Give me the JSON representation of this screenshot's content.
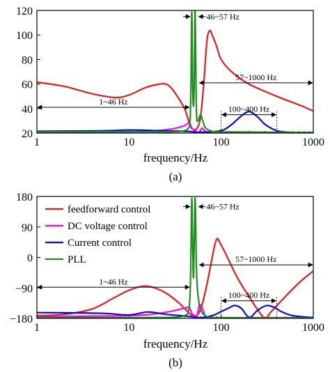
{
  "figure": {
    "panel_a_caption": "(a)",
    "panel_b_caption": "(b)"
  },
  "chart_data": [
    {
      "type": "line",
      "panel": "a",
      "title": "",
      "xlabel": "frequency/Hz",
      "ylabel": "",
      "x_scale": "log",
      "xlim": [
        1,
        1000
      ],
      "ylim": [
        20,
        120
      ],
      "x_ticks": [
        1,
        10,
        100,
        1000
      ],
      "x_tick_labels": [
        "1",
        "10",
        "100",
        "1000"
      ],
      "y_ticks": [
        20,
        40,
        60,
        80,
        100,
        120
      ],
      "y_tick_labels": [
        "20",
        "40",
        "60",
        "80",
        "100",
        "120"
      ],
      "grid": false,
      "annotations": [
        {
          "text": "1~46 Hz",
          "x_range": [
            1,
            46
          ],
          "y": 41
        },
        {
          "text": "46~57 Hz",
          "x_range": [
            46,
            57
          ],
          "y": 115
        },
        {
          "text": "57~1000 Hz",
          "x_range": [
            57,
            1000
          ],
          "y": 61
        },
        {
          "text": "100~400 Hz",
          "x_range": [
            100,
            400
          ],
          "y": 35
        }
      ],
      "series": [
        {
          "color": "#e41a1c",
          "points": [
            [
              1,
              61.5
            ],
            [
              2,
              58
            ],
            [
              4,
              52
            ],
            [
              7,
              49
            ],
            [
              10,
              51
            ],
            [
              15,
              57
            ],
            [
              20,
              59.5
            ],
            [
              25,
              60
            ],
            [
              30,
              55
            ],
            [
              40,
              40
            ],
            [
              46,
              26
            ],
            [
              50,
              23
            ],
            [
              55,
              24
            ],
            [
              60,
              34
            ],
            [
              65,
              62
            ],
            [
              70,
              95
            ],
            [
              75,
              103.5
            ],
            [
              80,
              100
            ],
            [
              90,
              90
            ],
            [
              100,
              80
            ],
            [
              130,
              70
            ],
            [
              200,
              60
            ],
            [
              400,
              50
            ],
            [
              700,
              43
            ],
            [
              1000,
              38
            ]
          ]
        },
        {
          "color": "#ff00ff",
          "points": [
            [
              1,
              20.5
            ],
            [
              10,
              21
            ],
            [
              20,
              22
            ],
            [
              30,
              23.5
            ],
            [
              40,
              26
            ],
            [
              45,
              28.5
            ],
            [
              48,
              24
            ],
            [
              52,
              22
            ],
            [
              55,
              20.5
            ],
            [
              58,
              21
            ],
            [
              62,
              24
            ],
            [
              66,
              22
            ],
            [
              70,
              21
            ],
            [
              100,
              20.5
            ],
            [
              1000,
              20.2
            ]
          ]
        },
        {
          "color": "#0a0ad2",
          "points": [
            [
              1,
              21.5
            ],
            [
              5,
              21.8
            ],
            [
              10,
              22.5
            ],
            [
              20,
              22
            ],
            [
              40,
              21.5
            ],
            [
              50,
              21
            ],
            [
              60,
              20.6
            ],
            [
              100,
              22
            ],
            [
              130,
              27
            ],
            [
              160,
              33
            ],
            [
              200,
              37.5
            ],
            [
              250,
              33
            ],
            [
              300,
              27
            ],
            [
              400,
              22
            ],
            [
              600,
              20.5
            ],
            [
              1000,
              20.2
            ]
          ]
        },
        {
          "color": "#1d8f1d",
          "points": [
            [
              1,
              21
            ],
            [
              10,
              21
            ],
            [
              30,
              21
            ],
            [
              40,
              22
            ],
            [
              44,
              24
            ],
            [
              46,
              30
            ],
            [
              47,
              60
            ],
            [
              48,
              119
            ],
            [
              49,
              60
            ],
            [
              50,
              42
            ],
            [
              51,
              60
            ],
            [
              52,
              119
            ],
            [
              53,
              80
            ],
            [
              54,
              35
            ],
            [
              56,
              30
            ],
            [
              58,
              33
            ],
            [
              60,
              35
            ],
            [
              63,
              30
            ],
            [
              68,
              24
            ],
            [
              80,
              21.5
            ],
            [
              100,
              21
            ],
            [
              1000,
              20.5
            ]
          ]
        }
      ]
    },
    {
      "type": "line",
      "panel": "b",
      "title": "",
      "xlabel": "frequency/Hz",
      "ylabel": "",
      "x_scale": "log",
      "xlim": [
        1,
        1000
      ],
      "ylim": [
        -180,
        180
      ],
      "x_ticks": [
        1,
        10,
        100,
        1000
      ],
      "x_tick_labels": [
        "1",
        "10",
        "100",
        "1000"
      ],
      "y_ticks": [
        -180,
        -90,
        0,
        90,
        180
      ],
      "y_tick_labels": [
        "−180",
        "−90",
        "0",
        "90",
        "180"
      ],
      "grid": false,
      "legend_position": "top-left",
      "annotations": [
        {
          "text": "1~46 Hz",
          "x_range": [
            1,
            46
          ],
          "y": -88
        },
        {
          "text": "46~57 Hz",
          "x_range": [
            46,
            57
          ],
          "y": 150
        },
        {
          "text": "57~1000 Hz",
          "x_range": [
            57,
            1000
          ],
          "y": -22
        },
        {
          "text": "100~400 Hz",
          "x_range": [
            100,
            400
          ],
          "y": -128
        }
      ],
      "series": [
        {
          "name": "feedforward control",
          "color": "#e41a1c",
          "points": [
            [
              1,
              -172
            ],
            [
              2,
              -168
            ],
            [
              4,
              -152
            ],
            [
              7,
              -118
            ],
            [
              10,
              -97
            ],
            [
              14,
              -85
            ],
            [
              18,
              -88
            ],
            [
              25,
              -105
            ],
            [
              35,
              -135
            ],
            [
              45,
              -165
            ],
            [
              50,
              -175
            ],
            [
              55,
              -172
            ],
            [
              62,
              -140
            ],
            [
              70,
              -80
            ],
            [
              78,
              -15
            ],
            [
              85,
              35
            ],
            [
              90,
              55
            ],
            [
              95,
              48
            ],
            [
              110,
              15
            ],
            [
              150,
              -60
            ],
            [
              200,
              -115
            ],
            [
              250,
              -155
            ],
            [
              300,
              -180
            ],
            [
              350,
              -160
            ],
            [
              500,
              -115
            ],
            [
              700,
              -75
            ],
            [
              1000,
              -40
            ]
          ]
        },
        {
          "name": "DC voltage control",
          "color": "#ff00ff",
          "points": [
            [
              1,
              -175
            ],
            [
              10,
              -172
            ],
            [
              20,
              -166
            ],
            [
              30,
              -158
            ],
            [
              40,
              -150
            ],
            [
              45,
              -148
            ],
            [
              48,
              -165
            ],
            [
              52,
              -172
            ],
            [
              55,
              -170
            ],
            [
              58,
              -140
            ],
            [
              62,
              -148
            ],
            [
              66,
              -168
            ],
            [
              70,
              -176
            ],
            [
              100,
              -178
            ],
            [
              1000,
              -178
            ]
          ]
        },
        {
          "name": "Current control",
          "color": "#0a0ad2",
          "points": [
            [
              1,
              -163
            ],
            [
              5,
              -165
            ],
            [
              10,
              -170
            ],
            [
              16,
              -161
            ],
            [
              25,
              -168
            ],
            [
              40,
              -173
            ],
            [
              60,
              -178
            ],
            [
              80,
              -172
            ],
            [
              100,
              -160
            ],
            [
              120,
              -150
            ],
            [
              140,
              -142
            ],
            [
              165,
              -150
            ],
            [
              190,
              -172
            ],
            [
              210,
              -176
            ],
            [
              240,
              -160
            ],
            [
              280,
              -147
            ],
            [
              320,
              -142
            ],
            [
              380,
              -148
            ],
            [
              450,
              -160
            ],
            [
              600,
              -172
            ],
            [
              1000,
              -178
            ]
          ]
        },
        {
          "name": "PLL",
          "color": "#1d8f1d",
          "points": [
            [
              1,
              -178
            ],
            [
              10,
              -178
            ],
            [
              30,
              -177
            ],
            [
              40,
              -172
            ],
            [
              44,
              -160
            ],
            [
              46,
              -110
            ],
            [
              47,
              20
            ],
            [
              48,
              175
            ],
            [
              49,
              40
            ],
            [
              50,
              -60
            ],
            [
              51,
              40
            ],
            [
              52,
              175
            ],
            [
              53,
              90
            ],
            [
              54,
              -40
            ],
            [
              56,
              -110
            ],
            [
              60,
              -155
            ],
            [
              70,
              -174
            ],
            [
              100,
              -178
            ],
            [
              1000,
              -179
            ]
          ]
        }
      ]
    }
  ]
}
